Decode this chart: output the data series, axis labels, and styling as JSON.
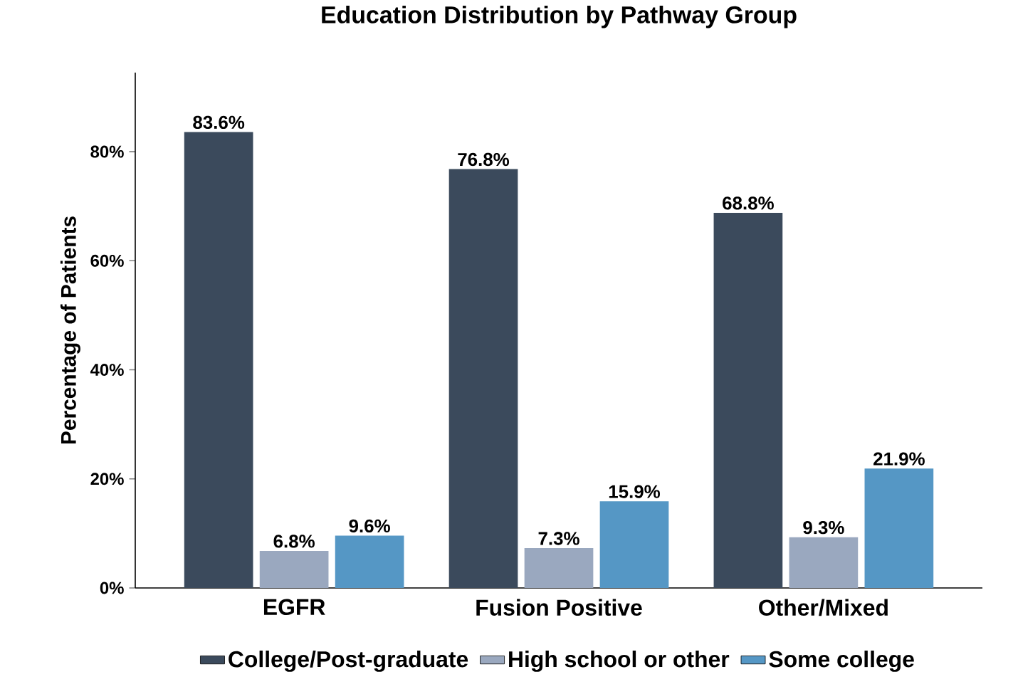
{
  "chart_data": {
    "type": "bar",
    "title": "Education Distribution by Pathway Group",
    "ylabel": "Percentage of Patients",
    "categories": [
      "EGFR",
      "Fusion Positive",
      "Other/Mixed"
    ],
    "series": [
      {
        "name": "College/Post-graduate",
        "color": "#3b4a5c",
        "values": [
          83.6,
          76.8,
          68.8
        ],
        "value_labels": [
          "83.6%",
          "76.8%",
          "68.8%"
        ]
      },
      {
        "name": "High school or other",
        "color": "#9aa8bf",
        "values": [
          6.8,
          7.3,
          9.3
        ],
        "value_labels": [
          "6.8%",
          "7.3%",
          "9.3%"
        ]
      },
      {
        "name": "Some college",
        "color": "#5597c5",
        "values": [
          9.6,
          15.9,
          21.9
        ],
        "value_labels": [
          "9.6%",
          "15.9%",
          "21.9%"
        ]
      }
    ],
    "ylim": [
      0,
      94.5
    ],
    "yticks": [
      {
        "value": 0,
        "label": "0%"
      },
      {
        "value": 20,
        "label": "20%"
      },
      {
        "value": 40,
        "label": "40%"
      },
      {
        "value": 60,
        "label": "60%"
      },
      {
        "value": 80,
        "label": "80%"
      }
    ],
    "legend": "bottom"
  }
}
